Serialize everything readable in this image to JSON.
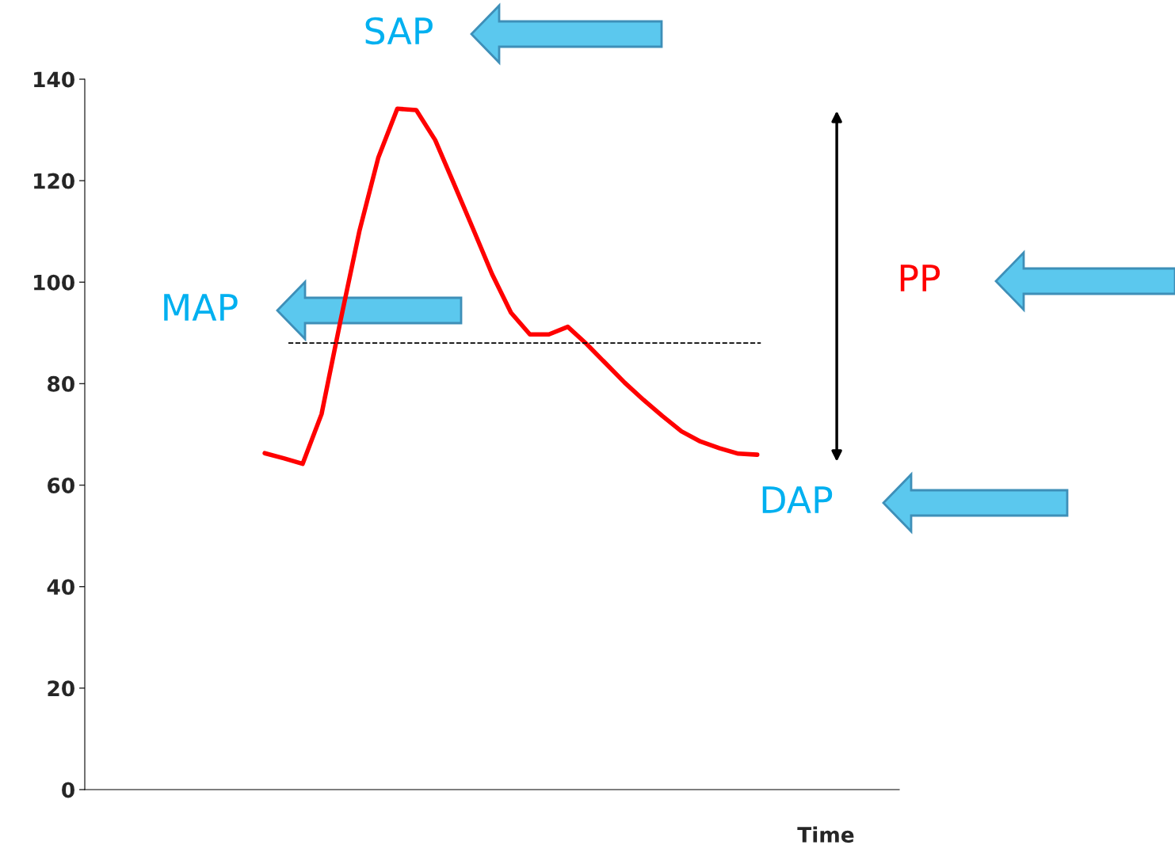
{
  "chart_data": {
    "type": "line",
    "xlabel": "Time",
    "categories": [
      null,
      null,
      null,
      null,
      null,
      null,
      null,
      null,
      null,
      null,
      null,
      null,
      null,
      null,
      null,
      null,
      null,
      null,
      null,
      null,
      null,
      null,
      null,
      null,
      null,
      null,
      null,
      null,
      null,
      null,
      null,
      null,
      null,
      null,
      null,
      null,
      null,
      null,
      null,
      null,
      null,
      null,
      null
    ],
    "series": [
      {
        "color": "#ff0000",
        "values": [
          null,
          null,
          null,
          null,
          null,
          null,
          null,
          null,
          null,
          66.3,
          65.3,
          64.2,
          74.0,
          92.4,
          110.1,
          124.6,
          134.2,
          133.9,
          128.0,
          119.3,
          110.5,
          101.6,
          94.0,
          89.7,
          89.7,
          91.2,
          87.8,
          84.0,
          80.2,
          76.8,
          73.6,
          70.6,
          68.6,
          67.3,
          66.2,
          66.0,
          null,
          null,
          null,
          null,
          null,
          null,
          null
        ]
      }
    ],
    "ylim": [
      0,
      140
    ],
    "yticks": [
      0,
      20,
      40,
      60,
      80,
      100,
      120,
      140
    ],
    "ref_lines": [
      {
        "axis": "y",
        "value": 88,
        "color": "#000000",
        "line_style": "dashed"
      }
    ],
    "annotations": [
      "SAP",
      "MAP",
      "PP",
      "DAP"
    ],
    "grid": false,
    "marker": "none",
    "line_style": "solid"
  }
}
